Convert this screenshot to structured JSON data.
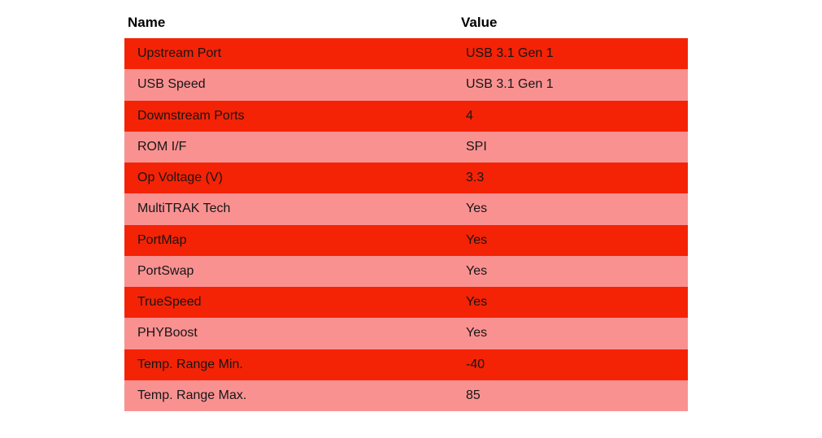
{
  "page": {
    "background": "#ffffff"
  },
  "colors": {
    "row_red": "#f42305",
    "row_pink": "#fa9191",
    "header_text": "#000000",
    "row_text": "#161616"
  },
  "table": {
    "columns": [
      "Name",
      "Value"
    ],
    "rows": [
      {
        "name": "Upstream Port",
        "value": "USB 3.1 Gen 1"
      },
      {
        "name": "USB Speed",
        "value": "USB 3.1 Gen 1"
      },
      {
        "name": "Downstream Ports",
        "value": "4"
      },
      {
        "name": "ROM I/F",
        "value": "SPI"
      },
      {
        "name": "Op Voltage (V)",
        "value": "3.3"
      },
      {
        "name": "MultiTRAK Tech",
        "value": "Yes"
      },
      {
        "name": "PortMap",
        "value": "Yes"
      },
      {
        "name": "PortSwap",
        "value": "Yes"
      },
      {
        "name": "TrueSpeed",
        "value": "Yes"
      },
      {
        "name": "PHYBoost",
        "value": "Yes"
      },
      {
        "name": "Temp. Range Min.",
        "value": "-40"
      },
      {
        "name": "Temp. Range Max.",
        "value": "85"
      }
    ]
  },
  "chart_data": {
    "type": "table",
    "title": "",
    "columns": [
      "Name",
      "Value"
    ],
    "rows": [
      [
        "Upstream Port",
        "USB 3.1 Gen 1"
      ],
      [
        "USB Speed",
        "USB 3.1 Gen 1"
      ],
      [
        "Downstream Ports",
        "4"
      ],
      [
        "ROM I/F",
        "SPI"
      ],
      [
        "Op Voltage (V)",
        "3.3"
      ],
      [
        "MultiTRAK Tech",
        "Yes"
      ],
      [
        "PortMap",
        "Yes"
      ],
      [
        "PortSwap",
        "Yes"
      ],
      [
        "TrueSpeed",
        "Yes"
      ],
      [
        "PHYBoost",
        "Yes"
      ],
      [
        "Temp. Range Min.",
        "-40"
      ],
      [
        "Temp. Range Max.",
        "85"
      ]
    ],
    "layout": {
      "stripe_colors_alternate": [
        "#f42305",
        "#fa9191"
      ],
      "header_background": "#ffffff",
      "grid": false
    }
  }
}
